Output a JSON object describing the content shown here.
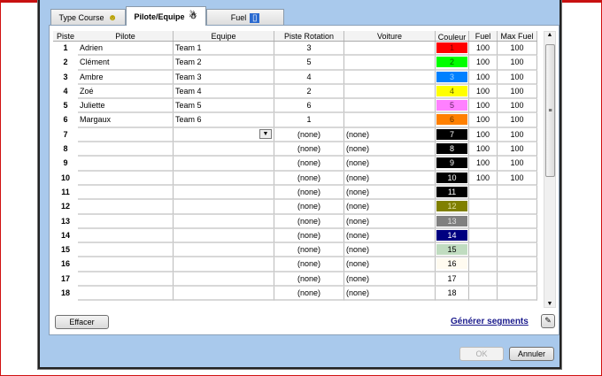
{
  "tabs": [
    {
      "label": "Type Course",
      "icon": "smiley-icon"
    },
    {
      "label": "Pilote/Equipe",
      "icon": "people-icon"
    },
    {
      "label": "Fuel",
      "icon": "fuel-pump-icon"
    }
  ],
  "columns": [
    "Piste",
    "Pilote",
    "Equipe",
    "Piste Rotation",
    "Voiture",
    "Couleur",
    "Fuel",
    "Max Fuel"
  ],
  "rows": [
    {
      "piste": "1",
      "pilote": "Adrien",
      "equipe": "Team 1",
      "rotation": "3",
      "voiture": "",
      "couleur": "1",
      "color": "#ff0000",
      "text": "#800000",
      "fuel": "100",
      "max": "100"
    },
    {
      "piste": "2",
      "pilote": "Clément",
      "equipe": "Team 2",
      "rotation": "5",
      "voiture": "",
      "couleur": "2",
      "color": "#00ff00",
      "text": "#006000",
      "fuel": "100",
      "max": "100"
    },
    {
      "piste": "3",
      "pilote": "Ambre",
      "equipe": "Team 3",
      "rotation": "4",
      "voiture": "",
      "couleur": "3",
      "color": "#0080ff",
      "text": "#a0d0ff",
      "fuel": "100",
      "max": "100"
    },
    {
      "piste": "4",
      "pilote": "Zoé",
      "equipe": "Team 4",
      "rotation": "2",
      "voiture": "",
      "couleur": "4",
      "color": "#ffff00",
      "text": "#606000",
      "fuel": "100",
      "max": "100"
    },
    {
      "piste": "5",
      "pilote": "Juliette",
      "equipe": "Team 5",
      "rotation": "6",
      "voiture": "",
      "couleur": "5",
      "color": "#ff80ff",
      "text": "#602060",
      "fuel": "100",
      "max": "100"
    },
    {
      "piste": "6",
      "pilote": "Margaux",
      "equipe": "Team 6",
      "rotation": "1",
      "voiture": "",
      "couleur": "6",
      "color": "#ff8000",
      "text": "#603000",
      "fuel": "100",
      "max": "100"
    },
    {
      "piste": "7",
      "pilote": "",
      "equipe": "",
      "rotation": "(none)",
      "voiture": "(none)",
      "couleur": "7",
      "color": "#000000",
      "text": "#ffffff",
      "fuel": "100",
      "max": "100"
    },
    {
      "piste": "8",
      "pilote": "",
      "equipe": "",
      "rotation": "(none)",
      "voiture": "(none)",
      "couleur": "8",
      "color": "#000000",
      "text": "#ffffff",
      "fuel": "100",
      "max": "100"
    },
    {
      "piste": "9",
      "pilote": "",
      "equipe": "",
      "rotation": "(none)",
      "voiture": "(none)",
      "couleur": "9",
      "color": "#000000",
      "text": "#ffffff",
      "fuel": "100",
      "max": "100"
    },
    {
      "piste": "10",
      "pilote": "",
      "equipe": "",
      "rotation": "(none)",
      "voiture": "(none)",
      "couleur": "10",
      "color": "#000000",
      "text": "#ffffff",
      "fuel": "100",
      "max": "100"
    },
    {
      "piste": "11",
      "pilote": "",
      "equipe": "",
      "rotation": "(none)",
      "voiture": "(none)",
      "couleur": "11",
      "color": "#000000",
      "text": "#ffffff",
      "fuel": "",
      "max": ""
    },
    {
      "piste": "12",
      "pilote": "",
      "equipe": "",
      "rotation": "(none)",
      "voiture": "(none)",
      "couleur": "12",
      "color": "#808000",
      "text": "#e0e0a0",
      "fuel": "",
      "max": ""
    },
    {
      "piste": "13",
      "pilote": "",
      "equipe": "",
      "rotation": "(none)",
      "voiture": "(none)",
      "couleur": "13",
      "color": "#808080",
      "text": "#e0e0e0",
      "fuel": "",
      "max": ""
    },
    {
      "piste": "14",
      "pilote": "",
      "equipe": "",
      "rotation": "(none)",
      "voiture": "(none)",
      "couleur": "14",
      "color": "#000080",
      "text": "#ffffff",
      "fuel": "",
      "max": ""
    },
    {
      "piste": "15",
      "pilote": "",
      "equipe": "",
      "rotation": "(none)",
      "voiture": "(none)",
      "couleur": "15",
      "color": "#c0dcc0",
      "text": "#000000",
      "fuel": "",
      "max": ""
    },
    {
      "piste": "16",
      "pilote": "",
      "equipe": "",
      "rotation": "(none)",
      "voiture": "(none)",
      "couleur": "16",
      "color": "#fffbf0",
      "text": "#000000",
      "fuel": "",
      "max": ""
    },
    {
      "piste": "17",
      "pilote": "",
      "equipe": "",
      "rotation": "(none)",
      "voiture": "(none)",
      "couleur": "17",
      "color": "#ffffff",
      "text": "#000000",
      "fuel": "",
      "max": ""
    },
    {
      "piste": "18",
      "pilote": "",
      "equipe": "",
      "rotation": "(none)",
      "voiture": "(none)",
      "couleur": "18",
      "color": "#ffffff",
      "text": "#000000",
      "fuel": "",
      "max": ""
    }
  ],
  "buttons": {
    "clear": "Effacer",
    "generate": "Générer segments",
    "ok": "OK",
    "cancel": "Annuler"
  }
}
